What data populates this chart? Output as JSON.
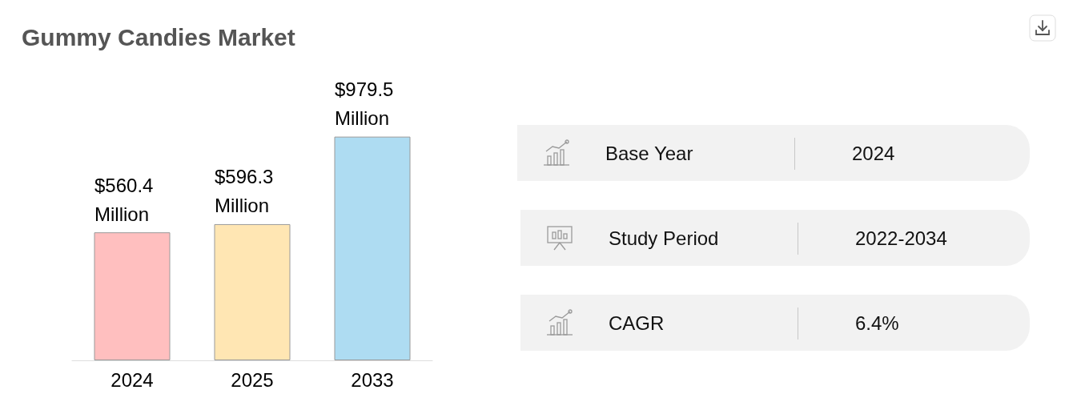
{
  "chart_data": [
    {
      "type": "bar",
      "title": "Gummy Candies Market",
      "categories": [
        "2024",
        "2025",
        "2033"
      ],
      "values": [
        560.4,
        596.3,
        979.5
      ],
      "colors": [
        "#ffbfbf",
        "#ffe6b3",
        "#aedcf2"
      ],
      "value_labels": [
        "$560.4 Million",
        "$596.3 Million",
        "$979.5 Million"
      ]
    },
    {
      "type": "other",
      "categories": [
        "Base Year",
        "Study Period",
        "CAGR"
      ],
      "value_labels": [
        "2024",
        "2022-2034",
        "6.4%"
      ]
    }
  ]
}
